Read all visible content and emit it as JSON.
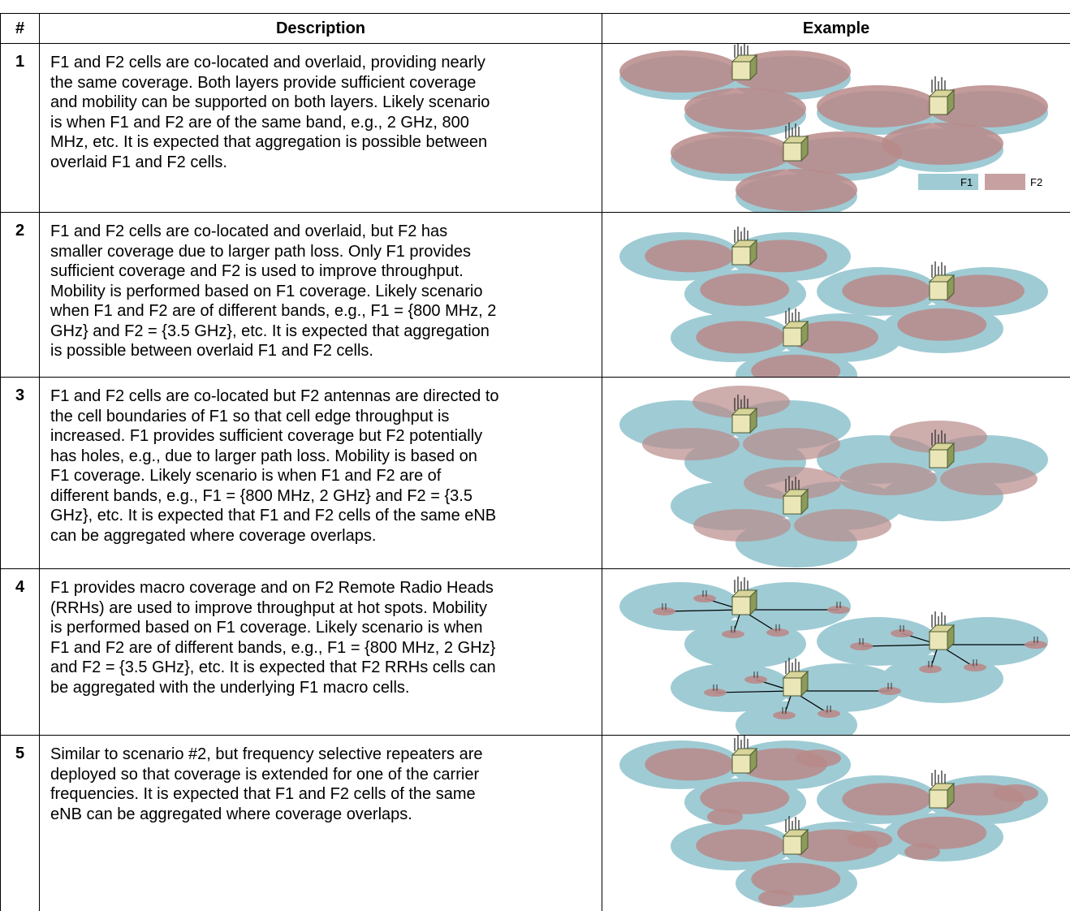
{
  "header": {
    "number": "#",
    "description": "Description",
    "example": "Example"
  },
  "rows": [
    {
      "number": "1",
      "description_lines": [
        "F1 and F2 cells are co-located and overlaid, providing nearly",
        "the same coverage. Both layers provide sufficient coverage",
        "and mobility can be supported on both layers. Likely scenario",
        "is when F1 and F2 are of the same band, e.g., 2 GHz, 800",
        "MHz, etc. It is expected that aggregation is possible between",
        "overlaid F1 and F2 cells."
      ]
    },
    {
      "number": "2",
      "description_lines": [
        "F1 and F2 cells are co-located and overlaid, but F2 has",
        "smaller coverage due to larger path loss. Only F1 provides",
        "sufficient coverage and F2 is used to improve throughput.",
        "Mobility is performed based on F1 coverage. Likely scenario",
        "when F1 and F2 are of different bands, e.g., F1 = {800 MHz, 2",
        "GHz} and F2 = {3.5 GHz}, etc. It is expected that aggregation",
        "is possible between overlaid F1 and F2 cells."
      ]
    },
    {
      "number": "3",
      "description_lines": [
        "F1 and F2 cells are co-located but F2 antennas are directed to",
        "the cell boundaries of F1 so that cell edge throughput is",
        "increased. F1 provides sufficient coverage but F2 potentially",
        "has holes, e.g., due to larger path loss. Mobility is based on",
        "F1 coverage. Likely scenario is when F1 and F2 are of",
        "different bands, e.g., F1 = {800 MHz, 2 GHz} and F2 = {3.5",
        "GHz}, etc. It is expected that F1 and F2 cells of the same eNB",
        "can be aggregated where coverage overlaps."
      ]
    },
    {
      "number": "4",
      "description_lines": [
        "F1 provides macro coverage and on F2 Remote Radio Heads",
        "(RRHs) are used to improve throughput at hot spots. Mobility",
        "is performed based on F1 coverage. Likely scenario is when",
        "F1 and F2 are of different bands, e.g., F1 = {800 MHz, 2 GHz}",
        "and F2 = {3.5 GHz}, etc. It is expected that F2 RRHs cells can",
        "be aggregated with the underlying F1 macro cells."
      ]
    },
    {
      "number": "5",
      "description_lines": [
        "Similar to scenario #2, but frequency selective repeaters are",
        "deployed so that coverage is extended for one of the carrier",
        "frequencies. It is expected that F1 and F2 cells of the same",
        "eNB can be aggregated where coverage overlaps."
      ]
    }
  ],
  "legend": {
    "f1": "F1",
    "f2": "F2"
  }
}
